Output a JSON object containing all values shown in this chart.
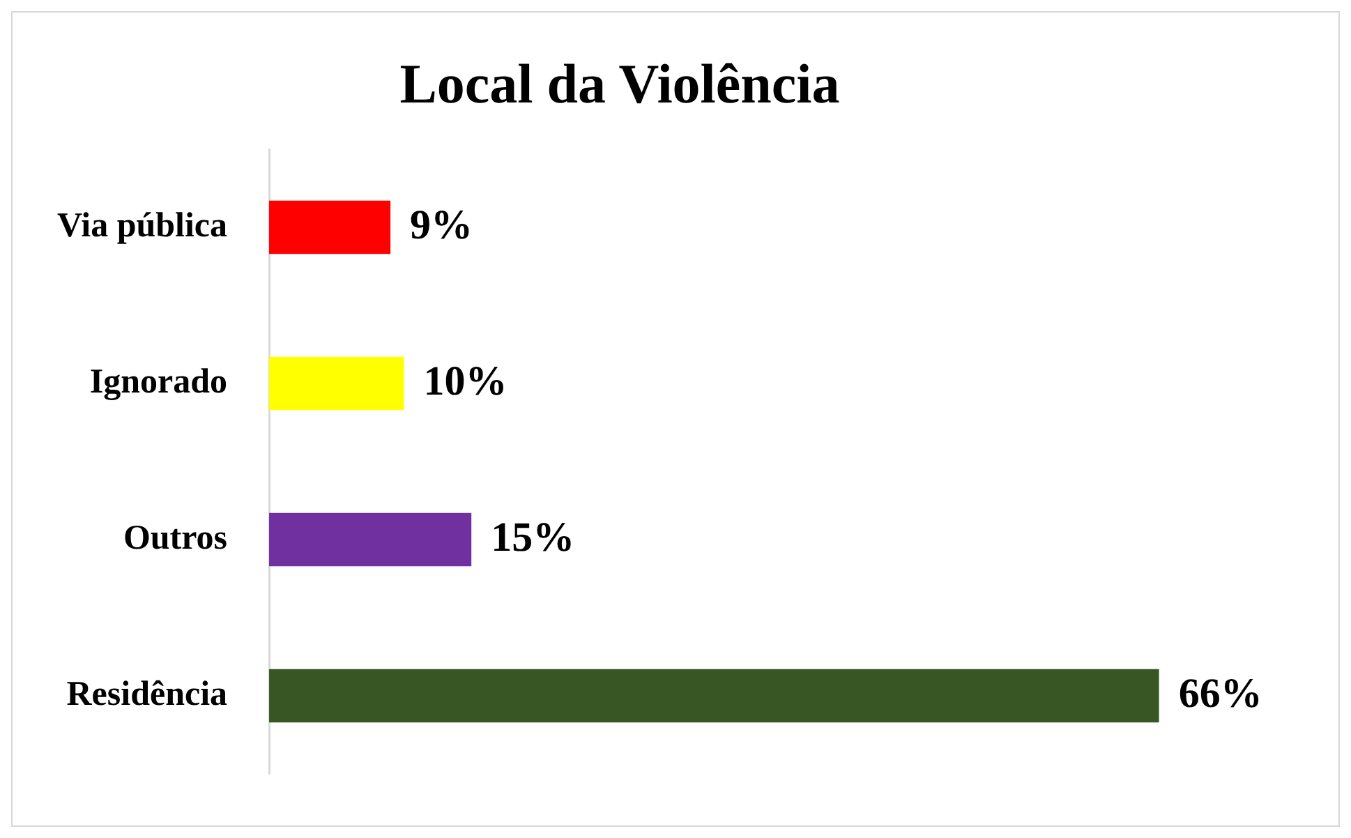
{
  "chart_data": {
    "type": "bar",
    "orientation": "horizontal",
    "title": "Local da Violência",
    "categories": [
      "Via pública",
      "Ignorado",
      "Outros",
      "Residência"
    ],
    "values": [
      9,
      10,
      15,
      66
    ],
    "colors": [
      "#ff0000",
      "#ffff00",
      "#7030a0",
      "#375623"
    ],
    "value_labels": [
      "9%",
      "10%",
      "15%",
      "66%"
    ],
    "grid": false,
    "legend": false
  }
}
